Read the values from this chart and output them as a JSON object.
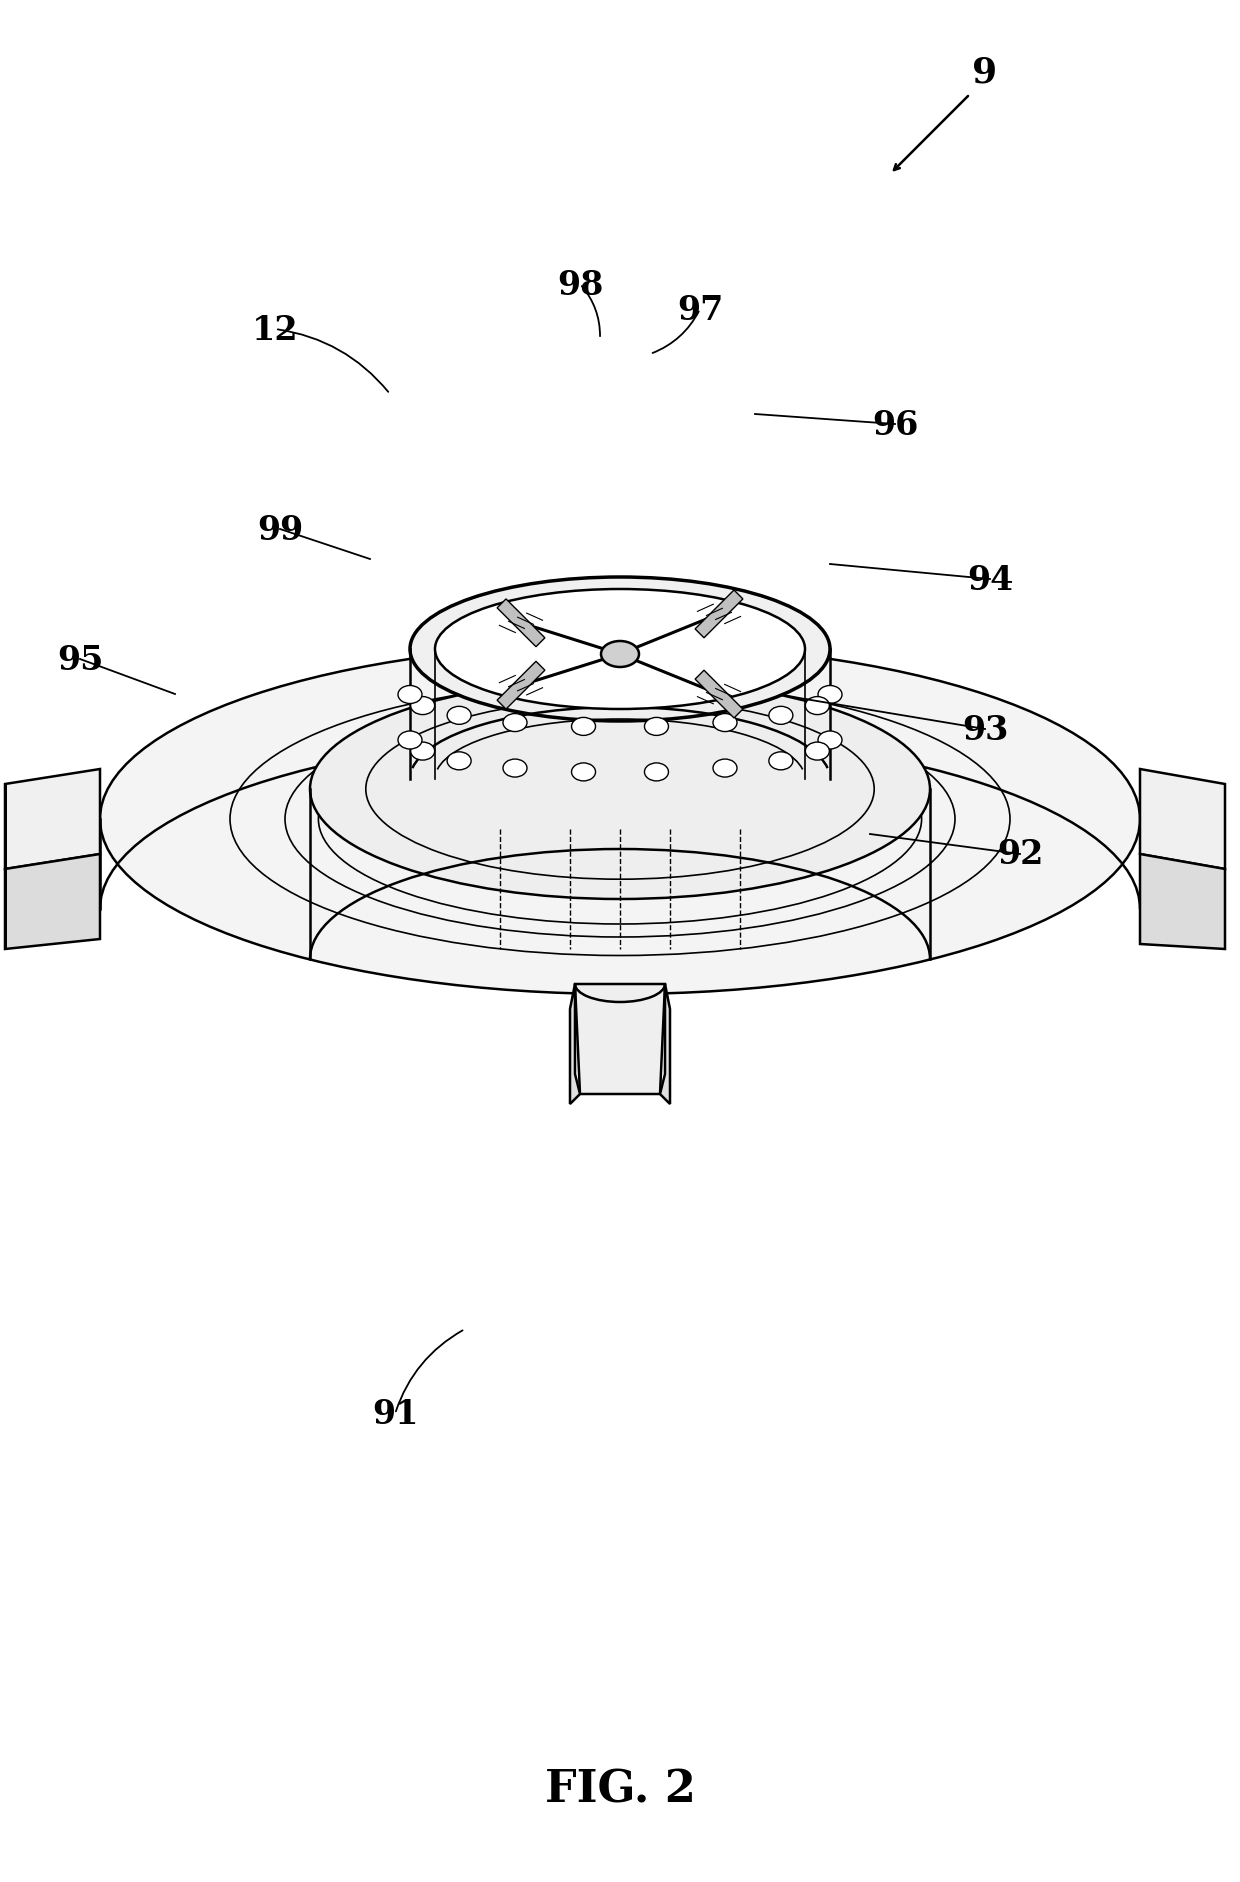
{
  "fig_label": "FIG. 2",
  "bg_color": "#ffffff",
  "line_color": "#000000",
  "fig_width": 12.4,
  "fig_height": 18.83,
  "dpi": 100
}
